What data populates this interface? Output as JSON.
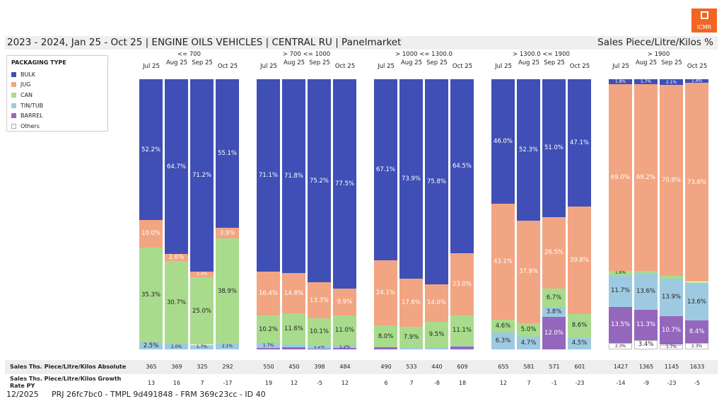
{
  "logo": "ICMR",
  "title": "2023 - 2024, Jan 25 - Oct 25 | ENGINE OILS VEHICLES | CENTRAL RU | Panelmarket",
  "measure": "Sales Piece/Litre/Kilos %",
  "footer": {
    "date": "12/2025",
    "ids": "PRJ 26fc7bc0 - TMPL 9d491848 - FRM 369c23cc - ID 40"
  },
  "chart_data": {
    "type": "bar",
    "stacked": true,
    "legend_title": "PACKAGING TYPE",
    "legend_position": "left",
    "series_names": [
      "BULK",
      "JUG",
      "CAN",
      "TIN/TUB",
      "BARREL",
      "Others"
    ],
    "colors": [
      "#3f4fb5",
      "#f2a582",
      "#a8dc8c",
      "#9ecae1",
      "#9467bd",
      "#ffffff"
    ],
    "months": [
      "Jul 25",
      "Aug 25",
      "Sep 25",
      "Oct 25"
    ],
    "groups": [
      {
        "name": "<= 700",
        "bars": [
          [
            52.2,
            10.0,
            35.3,
            2.5,
            0,
            0
          ],
          [
            64.7,
            2.6,
            30.7,
            2.0,
            0,
            0
          ],
          [
            71.2,
            2.2,
            25.0,
            1.7,
            0,
            0
          ],
          [
            55.1,
            3.9,
            38.9,
            2.1,
            0,
            0
          ]
        ],
        "absolute": [
          "365",
          "369",
          "325",
          "292"
        ],
        "growth": [
          "13",
          "16",
          "7",
          "-17"
        ]
      },
      {
        "name": "> 700 <= 1000",
        "bars": [
          [
            71.1,
            16.4,
            10.2,
            1.7,
            0.6,
            0
          ],
          [
            71.8,
            14.8,
            11.6,
            1.0,
            0.8,
            0
          ],
          [
            75.2,
            13.3,
            10.1,
            1.2,
            0.2,
            0
          ],
          [
            77.5,
            9.9,
            11.0,
            1.2,
            0.4,
            0
          ]
        ],
        "absolute": [
          "550",
          "450",
          "398",
          "484"
        ],
        "growth": [
          "19",
          "12",
          "-5",
          "12"
        ]
      },
      {
        "name": "> 1000 <= 1300.0",
        "bars": [
          [
            67.1,
            24.1,
            8.0,
            0,
            0.8,
            0
          ],
          [
            73.9,
            17.6,
            7.9,
            0.6,
            0,
            0
          ],
          [
            75.8,
            14.0,
            9.5,
            0.7,
            0,
            0
          ],
          [
            64.5,
            23.0,
            11.1,
            0.4,
            1.0,
            0
          ]
        ],
        "absolute": [
          "490",
          "533",
          "440",
          "609"
        ],
        "growth": [
          "6",
          "7",
          "-8",
          "18"
        ]
      },
      {
        "name": "> 1300.0 <= 1900",
        "bars": [
          [
            46.0,
            43.1,
            4.6,
            6.3,
            0,
            0
          ],
          [
            52.3,
            37.9,
            5.0,
            4.7,
            0,
            0
          ],
          [
            51.0,
            26.5,
            6.7,
            3.8,
            12.0,
            0
          ],
          [
            47.1,
            39.8,
            8.6,
            4.5,
            0,
            0
          ]
        ],
        "absolute": [
          "655",
          "581",
          "571",
          "601"
        ],
        "growth": [
          "12",
          "7",
          "-1",
          "-23"
        ]
      },
      {
        "name": "> 1900",
        "bars": [
          [
            1.8,
            69.0,
            1.6,
            11.7,
            13.5,
            2.3
          ],
          [
            1.7,
            69.2,
            0.7,
            13.6,
            11.3,
            3.4
          ],
          [
            2.1,
            70.8,
            0.8,
            13.9,
            10.7,
            1.7
          ],
          [
            1.4,
            73.6,
            0.7,
            13.6,
            8.4,
            2.3
          ]
        ],
        "absolute": [
          "1427",
          "1365",
          "1145",
          "1633"
        ],
        "growth": [
          "-14",
          "-9",
          "-23",
          "-5"
        ]
      }
    ],
    "row_labels": [
      "Sales Ths. Piece/Litre/Kilos Absolute",
      "Sales Ths. Piece/Litre/Kilos Growth Rate PY"
    ]
  }
}
